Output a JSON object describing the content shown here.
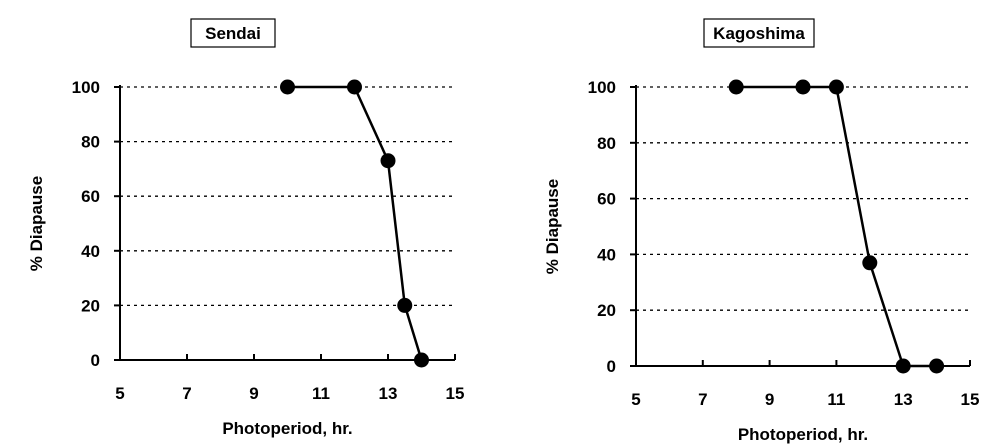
{
  "chart_data": [
    {
      "type": "line",
      "title": "Sendai",
      "xlabel": "Photoperiod, hr.",
      "ylabel": "% Diapause",
      "xlim": [
        5,
        15
      ],
      "ylim": [
        0,
        100
      ],
      "xticks": [
        5,
        7,
        9,
        11,
        13,
        15
      ],
      "yticks": [
        0,
        20,
        40,
        60,
        80,
        100
      ],
      "grid": "horizontal dotted",
      "x": [
        10,
        12,
        13,
        13.5,
        14
      ],
      "y": [
        100,
        100,
        73,
        20,
        0
      ]
    },
    {
      "type": "line",
      "title": "Kagoshima",
      "xlabel": "Photoperiod, hr.",
      "ylabel": "% Diapause",
      "xlim": [
        5,
        15
      ],
      "ylim": [
        0,
        100
      ],
      "xticks": [
        5,
        7,
        9,
        11,
        13,
        15
      ],
      "yticks": [
        0,
        20,
        40,
        60,
        80,
        100
      ],
      "grid": "horizontal dotted",
      "x": [
        8,
        10,
        11,
        12,
        13,
        14
      ],
      "y": [
        100,
        100,
        100,
        37,
        0,
        0
      ]
    }
  ],
  "colors": {
    "ink": "#000000",
    "background": "#ffffff"
  }
}
